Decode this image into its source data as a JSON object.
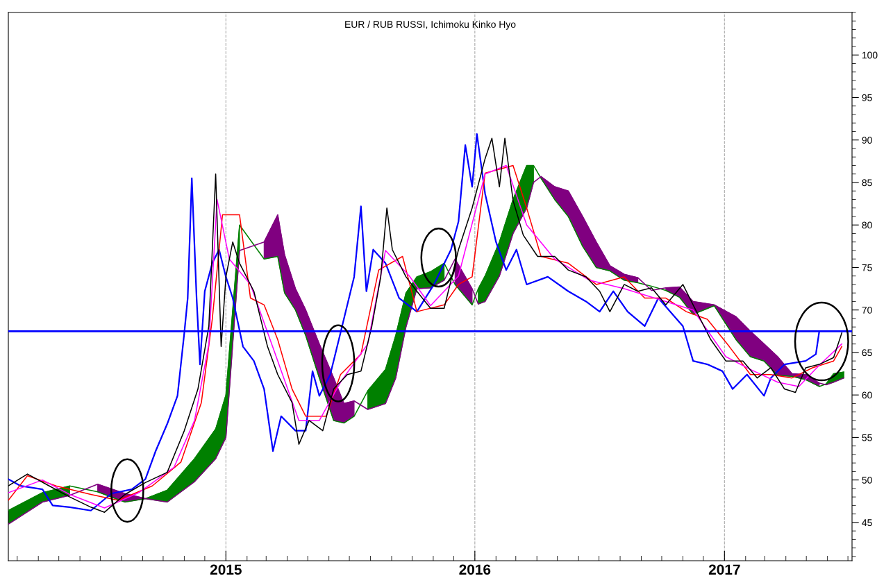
{
  "chart_data": {
    "type": "line",
    "title": "EUR / RUB RUSSI, Ichimoku Kinko Hyo",
    "xlim": [
      "2014-02-16",
      "2017-07-07"
    ],
    "ylim": [
      40.5,
      105
    ],
    "xticks": [
      {
        "value": "2015-01-01",
        "label": "2015"
      },
      {
        "value": "2016-01-01",
        "label": "2016"
      },
      {
        "value": "2017-01-01",
        "label": "2017"
      }
    ],
    "yticks": [
      45,
      50,
      55,
      60,
      65,
      70,
      75,
      80,
      85,
      90,
      95,
      100
    ],
    "grid": "x",
    "legend": false,
    "marker": "none",
    "line_style": "solid",
    "ref_lines": [
      {
        "axis": "y",
        "value": 67.5,
        "color": "#0000ff",
        "line_style": "solid"
      }
    ],
    "series": [
      {
        "color": "#008000",
        "lower": [
          44.8,
          47.4,
          48.2,
          null,
          null,
          47.8,
          47.4,
          49.8,
          52.5,
          55,
          77,
          null,
          null,
          null,
          null,
          null,
          null,
          null,
          null,
          null,
          58.3,
          59,
          62,
          68,
          72.5,
          72.6,
          73.5,
          null,
          null,
          70.7,
          71,
          74,
          79,
          82,
          85,
          null,
          null,
          null,
          null,
          null,
          null,
          null,
          null,
          null,
          null,
          null,
          null,
          null,
          null,
          null,
          null,
          null,
          null,
          null,
          null,
          61.2,
          61.5,
          62
        ],
        "upper": [
          46.4,
          48.5,
          49.3,
          null,
          null,
          47.8,
          48.8,
          52.5,
          56,
          60,
          80,
          null,
          null,
          null,
          null,
          null,
          null,
          null,
          null,
          null,
          60.5,
          63,
          67,
          72,
          73.9,
          74.5,
          75.5,
          null,
          null,
          72.5,
          74,
          78,
          83,
          87,
          87,
          null,
          null,
          null,
          null,
          null,
          null,
          null,
          null,
          null,
          null,
          null,
          null,
          null,
          null,
          null,
          null,
          null,
          null,
          null,
          null,
          61.3,
          62.5,
          62.7
        ],
        "x": [
          "2014-02-16",
          "2014-04-07",
          "2014-05-17",
          "2014-06-27",
          "2014-08-06",
          "2014-09-05",
          "2014-10-07",
          "2014-11-16",
          "2014-12-17",
          "2015-01-01",
          "2015-01-21",
          "2015-02-26",
          "2015-03-18",
          "2015-03-28",
          "2015-04-13",
          "2015-04-28",
          "2015-05-18",
          "2015-06-08",
          "2015-06-23",
          "2015-07-08",
          "2015-07-28",
          "2015-08-23",
          "2015-09-07",
          "2015-09-22",
          "2015-10-08",
          "2015-10-28",
          "2015-11-17",
          "2015-12-03",
          "2015-12-28",
          "2016-01-06",
          "2016-01-16",
          "2016-02-06",
          "2016-02-26",
          "2016-03-17",
          "2016-03-27",
          "2016-04-07",
          "2016-04-27",
          "2016-05-17",
          "2016-06-07",
          "2016-06-27",
          "2016-07-17",
          "2016-08-07",
          "2016-08-27",
          "2016-09-16",
          "2016-10-07",
          "2016-10-27",
          "2016-11-16",
          "2016-12-17",
          "2017-01-18",
          "2017-02-08",
          "2017-02-28",
          "2017-03-20",
          "2017-04-10",
          "2017-04-30",
          "2017-05-20",
          "2017-05-30",
          "2017-06-10",
          "2017-06-25"
        ],
        "values": [
          46.4,
          48.5,
          49.3,
          48.6,
          47.4,
          47.8,
          48.8,
          52.5,
          56,
          60,
          80,
          76,
          76.3,
          72,
          70,
          67,
          62,
          57,
          56.7,
          57.5,
          60.5,
          63,
          67,
          72,
          73.9,
          74.5,
          75.5,
          73,
          70.6,
          72.5,
          74,
          78,
          83,
          87,
          87,
          85.5,
          83,
          81,
          77.5,
          75,
          74.6,
          73.5,
          73.2,
          72.8,
          72.3,
          71.5,
          69.5,
          70.5,
          66.5,
          64.5,
          64,
          62.3,
          62.2,
          61.8,
          61,
          61.3,
          62.5,
          62.7
        ]
      },
      {
        "color": "#800080",
        "lower": [
          null,
          null,
          null,
          48.6,
          47.4,
          47.8,
          null,
          null,
          null,
          null,
          null,
          76,
          76.3,
          72,
          70,
          67,
          62,
          57,
          56.7,
          57.5,
          null,
          null,
          null,
          null,
          null,
          null,
          null,
          73,
          70.6,
          null,
          null,
          null,
          null,
          null,
          null,
          85.5,
          83,
          81,
          77.5,
          75,
          74.6,
          73.5,
          73.2,
          null,
          72.3,
          71.5,
          69.5,
          70.5,
          66.5,
          64.5,
          64,
          62.3,
          62.2,
          61.8,
          61,
          null,
          null,
          null
        ],
        "upper": [
          null,
          null,
          null,
          49.5,
          48.4,
          47.8,
          null,
          null,
          null,
          null,
          null,
          78,
          81.2,
          76.5,
          72.5,
          70,
          66,
          62,
          59,
          59.3,
          null,
          null,
          null,
          null,
          null,
          null,
          null,
          76,
          72.5,
          null,
          null,
          null,
          null,
          null,
          null,
          85.7,
          84.5,
          84,
          81,
          78,
          75.2,
          74.2,
          73.8,
          null,
          72.6,
          72.7,
          71,
          70.6,
          69.2,
          67.5,
          66,
          64.5,
          62.5,
          62.4,
          61.4,
          null,
          null,
          null
        ],
        "x": [
          "2014-02-16",
          "2014-04-07",
          "2014-05-17",
          "2014-06-27",
          "2014-08-06",
          "2014-09-05",
          "2014-10-07",
          "2014-11-16",
          "2014-12-17",
          "2015-01-01",
          "2015-01-21",
          "2015-02-26",
          "2015-03-18",
          "2015-03-28",
          "2015-04-13",
          "2015-04-28",
          "2015-05-18",
          "2015-06-08",
          "2015-06-23",
          "2015-07-08",
          "2015-07-28",
          "2015-08-23",
          "2015-09-07",
          "2015-09-22",
          "2015-10-08",
          "2015-10-28",
          "2015-11-17",
          "2015-12-03",
          "2015-12-28",
          "2016-01-06",
          "2016-01-16",
          "2016-02-06",
          "2016-02-26",
          "2016-03-17",
          "2016-03-27",
          "2016-04-07",
          "2016-04-27",
          "2016-05-17",
          "2016-06-07",
          "2016-06-27",
          "2016-07-17",
          "2016-08-07",
          "2016-08-27",
          "2016-09-16",
          "2016-10-07",
          "2016-10-27",
          "2016-11-16",
          "2016-12-17",
          "2017-01-18",
          "2017-02-08",
          "2017-02-28",
          "2017-03-20",
          "2017-04-10",
          "2017-04-30",
          "2017-05-20",
          "2017-05-30",
          "2017-06-10",
          "2017-06-25"
        ],
        "values": [
          44.8,
          47.4,
          48.2,
          49.5,
          48.4,
          47.8,
          47.4,
          49.8,
          52.5,
          55,
          77,
          78,
          81.2,
          76.5,
          72.5,
          70,
          66,
          62,
          59,
          59.3,
          58.3,
          59,
          62,
          68,
          72.5,
          72.6,
          73.5,
          76,
          72.5,
          70.7,
          71,
          74,
          79,
          82,
          85,
          85.7,
          84.5,
          84,
          81,
          78,
          75.2,
          74.2,
          73.8,
          72.3,
          72.6,
          72.7,
          71,
          70.6,
          69.2,
          67.5,
          66,
          64.5,
          62.5,
          62.4,
          61.4,
          61.2,
          61.5,
          62
        ]
      },
      {
        "type": "line",
        "color": "#0000ff",
        "x": [
          "2014-02-16",
          "2014-03-06",
          "2014-04-07",
          "2014-04-22",
          "2014-05-17",
          "2014-06-17",
          "2014-07-17",
          "2014-08-16",
          "2014-09-05",
          "2014-09-20",
          "2014-10-07",
          "2014-10-22",
          "2014-11-01",
          "2014-11-06",
          "2014-11-12",
          "2014-11-19",
          "2014-11-24",
          "2014-12-01",
          "2014-12-12",
          "2014-12-22",
          "2015-01-01",
          "2015-01-11",
          "2015-01-26",
          "2015-02-11",
          "2015-02-26",
          "2015-03-11",
          "2015-03-23",
          "2015-04-13",
          "2015-04-28",
          "2015-05-08",
          "2015-05-18",
          "2015-06-03",
          "2015-06-18",
          "2015-07-08",
          "2015-07-18",
          "2015-07-26",
          "2015-08-05",
          "2015-08-23",
          "2015-09-12",
          "2015-10-08",
          "2015-11-02",
          "2015-11-27",
          "2015-12-08",
          "2015-12-18",
          "2015-12-28",
          "2016-01-04",
          "2016-01-16",
          "2016-02-01",
          "2016-02-16",
          "2016-03-02",
          "2016-03-17",
          "2016-04-17",
          "2016-05-17",
          "2016-06-12",
          "2016-07-02",
          "2016-07-22",
          "2016-08-12",
          "2016-09-06",
          "2016-09-26",
          "2016-11-01",
          "2016-11-16",
          "2016-12-07",
          "2016-12-29",
          "2017-01-13",
          "2017-02-03",
          "2017-02-28",
          "2017-03-10",
          "2017-03-30",
          "2017-04-30",
          "2017-05-15",
          "2017-05-20"
        ],
        "values": [
          50.1,
          49.3,
          48.9,
          47,
          46.8,
          46.4,
          48.4,
          48.9,
          50.1,
          53.4,
          56.6,
          59.9,
          67.3,
          71.4,
          85.5,
          71.4,
          63.6,
          72.2,
          75.5,
          77.1,
          73.9,
          71.4,
          65.7,
          64,
          60.7,
          53.4,
          57.5,
          55.8,
          55.8,
          62.8,
          59.9,
          62.4,
          67.3,
          73.9,
          82.2,
          72.2,
          77.1,
          75.5,
          71.4,
          69.8,
          73,
          77.1,
          80.4,
          89.4,
          84.5,
          90.7,
          83.7,
          78,
          74.7,
          77.1,
          73,
          73.9,
          72.2,
          71,
          69.8,
          72.2,
          69.8,
          68.1,
          71.4,
          68.1,
          64,
          63.6,
          62.8,
          60.7,
          62.4,
          59.9,
          62,
          63.6,
          64,
          64.8,
          67.5
        ]
      },
      {
        "type": "line",
        "color": "#ff0000",
        "x": [
          "2014-02-16",
          "2014-03-16",
          "2014-04-27",
          "2014-06-17",
          "2014-07-27",
          "2014-09-15",
          "2014-10-27",
          "2014-11-26",
          "2014-12-12",
          "2014-12-27",
          "2015-01-21",
          "2015-02-06",
          "2015-02-26",
          "2015-03-18",
          "2015-04-08",
          "2015-04-28",
          "2015-05-28",
          "2015-06-18",
          "2015-07-18",
          "2015-08-13",
          "2015-09-17",
          "2015-10-08",
          "2015-11-17",
          "2015-12-08",
          "2015-12-28",
          "2016-01-16",
          "2016-02-26",
          "2016-03-17",
          "2016-04-07",
          "2016-05-17",
          "2016-06-27",
          "2016-08-07",
          "2016-09-06",
          "2016-10-07",
          "2016-11-06",
          "2016-12-07",
          "2017-01-08",
          "2017-02-08",
          "2017-03-10",
          "2017-04-10",
          "2017-05-10",
          "2017-06-10",
          "2017-06-22"
        ],
        "values": [
          47.6,
          50.5,
          49.3,
          48.3,
          47.6,
          49.3,
          52.1,
          59.1,
          68.9,
          81.2,
          81.2,
          71.4,
          70.6,
          66.5,
          60.7,
          57.5,
          57.5,
          62.4,
          64.8,
          74.7,
          76.3,
          69.8,
          70.6,
          73,
          73.9,
          86.1,
          87,
          82,
          76.3,
          75.5,
          73,
          73.9,
          71.4,
          71.4,
          69.8,
          68.9,
          65.7,
          62.4,
          62.4,
          62,
          63.2,
          64,
          65.7
        ]
      },
      {
        "type": "line",
        "color": "#ff00ff",
        "x": [
          "2014-02-16",
          "2014-04-07",
          "2014-05-17",
          "2014-07-07",
          "2014-08-26",
          "2014-10-17",
          "2014-11-16",
          "2014-12-07",
          "2014-12-19",
          "2015-01-06",
          "2015-02-06",
          "2015-03-18",
          "2015-04-18",
          "2015-05-18",
          "2015-06-18",
          "2015-07-28",
          "2015-08-23",
          "2015-09-27",
          "2015-10-28",
          "2015-12-08",
          "2016-01-16",
          "2016-02-16",
          "2016-03-17",
          "2016-04-27",
          "2016-06-17",
          "2016-08-07",
          "2016-10-07",
          "2016-11-16",
          "2017-01-03",
          "2017-02-08",
          "2017-03-20",
          "2017-04-20",
          "2017-05-20",
          "2017-06-22"
        ],
        "values": [
          48.5,
          50,
          48.3,
          46.7,
          48.5,
          51.5,
          57,
          66,
          83,
          76,
          73,
          64,
          57,
          57,
          61.5,
          66,
          77,
          74,
          70.5,
          74,
          86,
          87,
          80,
          76,
          73.5,
          72.5,
          71,
          70,
          64.5,
          63,
          61.5,
          61,
          63.5,
          66
        ]
      },
      {
        "type": "line",
        "color": "#000000",
        "x": [
          "2014-02-16",
          "2014-03-16",
          "2014-04-17",
          "2014-05-17",
          "2014-06-17",
          "2014-07-07",
          "2014-08-06",
          "2014-09-05",
          "2014-10-07",
          "2014-11-01",
          "2014-11-21",
          "2014-12-07",
          "2014-12-17",
          "2014-12-25",
          "2015-01-01",
          "2015-01-11",
          "2015-01-21",
          "2015-02-11",
          "2015-03-03",
          "2015-03-18",
          "2015-04-08",
          "2015-04-18",
          "2015-05-03",
          "2015-05-23",
          "2015-06-08",
          "2015-06-28",
          "2015-07-18",
          "2015-08-03",
          "2015-08-16",
          "2015-08-25",
          "2015-09-02",
          "2015-09-22",
          "2015-10-08",
          "2015-10-28",
          "2015-11-17",
          "2015-12-08",
          "2015-12-28",
          "2016-01-16",
          "2016-01-26",
          "2016-02-06",
          "2016-02-14",
          "2016-02-26",
          "2016-03-12",
          "2016-04-02",
          "2016-04-27",
          "2016-05-17",
          "2016-06-12",
          "2016-07-02",
          "2016-07-17",
          "2016-08-07",
          "2016-08-27",
          "2016-09-16",
          "2016-10-07",
          "2016-11-01",
          "2016-11-16",
          "2016-12-12",
          "2017-01-03",
          "2017-01-28",
          "2017-02-18",
          "2017-03-10",
          "2017-03-30",
          "2017-04-15",
          "2017-04-30",
          "2017-05-20",
          "2017-06-10",
          "2017-06-22"
        ],
        "values": [
          49.3,
          50.7,
          49.3,
          48,
          46.8,
          46.2,
          48.3,
          49.7,
          50.9,
          55.8,
          60.7,
          68.1,
          86,
          65.7,
          73.9,
          78,
          75.5,
          72.2,
          65.7,
          62.4,
          59.1,
          54.2,
          57,
          55.8,
          60.7,
          62.4,
          62.8,
          68.1,
          73.9,
          82,
          77.1,
          73.9,
          72.2,
          70.2,
          70.2,
          77.1,
          82,
          87.8,
          90.2,
          84.5,
          90.2,
          82.9,
          78.8,
          76.3,
          76.3,
          74.7,
          73.9,
          72.2,
          69.8,
          73,
          72.2,
          72.6,
          70.6,
          73,
          70.6,
          66.5,
          64,
          64,
          62,
          63.2,
          60.7,
          60.3,
          63.2,
          63.6,
          64.4,
          67.3
        ]
      }
    ]
  }
}
